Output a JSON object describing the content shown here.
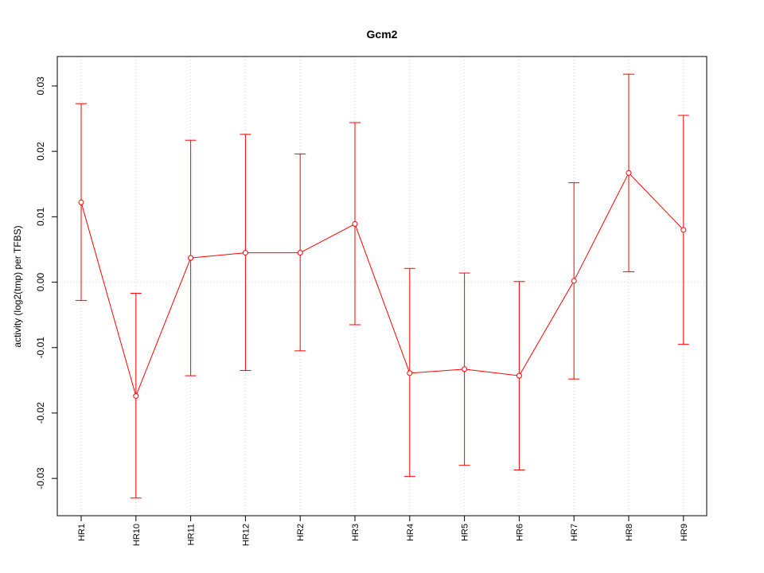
{
  "chart_data": {
    "type": "line",
    "title": "Gcm2",
    "xlabel": "",
    "ylabel": "activity (log2(tmp) per TFBS)",
    "categories": [
      "HR1",
      "HR10",
      "HR11",
      "HR12",
      "HR2",
      "HR3",
      "HR4",
      "HR5",
      "HR6",
      "HR7",
      "HR8",
      "HR9"
    ],
    "values": [
      0.0122,
      -0.0174,
      0.0037,
      0.0045,
      0.0045,
      0.0089,
      -0.0139,
      -0.0133,
      -0.0143,
      0.0002,
      0.0167,
      0.008
    ],
    "upper": [
      0.0273,
      -0.0017,
      0.0217,
      0.0226,
      0.0196,
      0.0244,
      0.0021,
      0.0014,
      0.0001,
      0.0152,
      0.0318,
      0.0255
    ],
    "lower": [
      -0.0028,
      -0.033,
      -0.0143,
      -0.0135,
      -0.0105,
      -0.0065,
      -0.0297,
      -0.028,
      -0.0287,
      -0.0148,
      0.0016,
      -0.0095
    ],
    "yticks": [
      -0.03,
      -0.02,
      -0.01,
      0.0,
      0.01,
      0.02,
      0.03
    ],
    "ytick_labels": [
      "-0.03",
      "-0.02",
      "-0.01",
      "0.00",
      "0.01",
      "0.02",
      "0.03"
    ],
    "ylim": [
      -0.0357,
      0.0345
    ],
    "grid": "vertical dotted at categories, horizontal dotted at 0",
    "series_color": "#ff0000",
    "grid_color": "#d3d3d3"
  }
}
